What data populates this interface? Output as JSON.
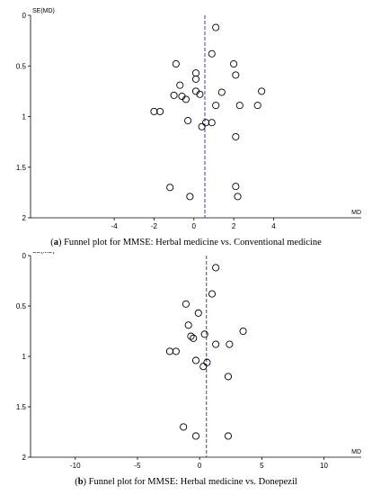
{
  "chart_data": [
    {
      "type": "scatter",
      "panel": "a",
      "caption_letter": "a",
      "caption_text": "Funnel plot for MMSE: Herbal medicine vs. Conventional medicine",
      "ylabel": "SE(MD)",
      "xlabel": "MD",
      "xlim": [
        -8.2,
        8.4
      ],
      "ylim": [
        0,
        2
      ],
      "y_inverted": true,
      "x_ticks": [
        -4,
        -2,
        0,
        2,
        4
      ],
      "y_ticks": [
        0,
        0.5,
        1,
        1.5,
        2
      ],
      "x_tick_labels": [
        "-4",
        "-2",
        "0",
        "2",
        "4"
      ],
      "y_tick_labels": [
        "0",
        "0.5",
        "1",
        "1.5",
        "2"
      ],
      "pooled_line_x": 0.55,
      "points": [
        {
          "x": 1.1,
          "y": 0.12
        },
        {
          "x": 0.9,
          "y": 0.38
        },
        {
          "x": -0.9,
          "y": 0.48
        },
        {
          "x": 2.0,
          "y": 0.48
        },
        {
          "x": 0.1,
          "y": 0.57
        },
        {
          "x": 2.1,
          "y": 0.59
        },
        {
          "x": 0.1,
          "y": 0.63
        },
        {
          "x": -0.7,
          "y": 0.69
        },
        {
          "x": 0.1,
          "y": 0.75
        },
        {
          "x": 3.4,
          "y": 0.75
        },
        {
          "x": 1.4,
          "y": 0.76
        },
        {
          "x": 0.3,
          "y": 0.78
        },
        {
          "x": -1.0,
          "y": 0.79
        },
        {
          "x": -0.6,
          "y": 0.8
        },
        {
          "x": -0.4,
          "y": 0.83
        },
        {
          "x": 1.1,
          "y": 0.89
        },
        {
          "x": 2.3,
          "y": 0.89
        },
        {
          "x": 3.2,
          "y": 0.89
        },
        {
          "x": -2.0,
          "y": 0.95
        },
        {
          "x": -1.7,
          "y": 0.95
        },
        {
          "x": -0.3,
          "y": 1.04
        },
        {
          "x": 0.6,
          "y": 1.06
        },
        {
          "x": 0.9,
          "y": 1.06
        },
        {
          "x": 0.4,
          "y": 1.1
        },
        {
          "x": 2.1,
          "y": 1.2
        },
        {
          "x": -1.2,
          "y": 1.7
        },
        {
          "x": 2.1,
          "y": 1.69
        },
        {
          "x": -0.2,
          "y": 1.79
        },
        {
          "x": 2.2,
          "y": 1.79
        }
      ]
    },
    {
      "type": "scatter",
      "panel": "b",
      "caption_letter": "b",
      "caption_text": "Funnel plot for MMSE: Herbal medicine vs. Donepezil",
      "ylabel": "SE(MD)",
      "xlabel": "MD",
      "xlim": [
        -13.6,
        13.0
      ],
      "ylim": [
        0,
        2
      ],
      "y_inverted": true,
      "x_ticks": [
        -10,
        -5,
        0,
        5,
        10
      ],
      "y_ticks": [
        0,
        0.5,
        1,
        1.5,
        2
      ],
      "x_tick_labels": [
        "-10",
        "-5",
        "0",
        "5",
        "10"
      ],
      "y_tick_labels": [
        "0",
        "0.5",
        "1",
        "1.5",
        "2"
      ],
      "pooled_line_x": 0.55,
      "points": [
        {
          "x": 1.3,
          "y": 0.12
        },
        {
          "x": 1.0,
          "y": 0.38
        },
        {
          "x": -1.1,
          "y": 0.48
        },
        {
          "x": -0.1,
          "y": 0.57
        },
        {
          "x": -0.9,
          "y": 0.69
        },
        {
          "x": 3.5,
          "y": 0.75
        },
        {
          "x": 0.4,
          "y": 0.78
        },
        {
          "x": -0.7,
          "y": 0.8
        },
        {
          "x": -0.5,
          "y": 0.82
        },
        {
          "x": 1.3,
          "y": 0.88
        },
        {
          "x": 2.4,
          "y": 0.88
        },
        {
          "x": -2.4,
          "y": 0.95
        },
        {
          "x": -1.9,
          "y": 0.95
        },
        {
          "x": -0.3,
          "y": 1.04
        },
        {
          "x": 0.6,
          "y": 1.06
        },
        {
          "x": 0.3,
          "y": 1.1
        },
        {
          "x": 2.3,
          "y": 1.2
        },
        {
          "x": -1.3,
          "y": 1.7
        },
        {
          "x": -0.3,
          "y": 1.79
        },
        {
          "x": 2.3,
          "y": 1.79
        }
      ]
    }
  ]
}
